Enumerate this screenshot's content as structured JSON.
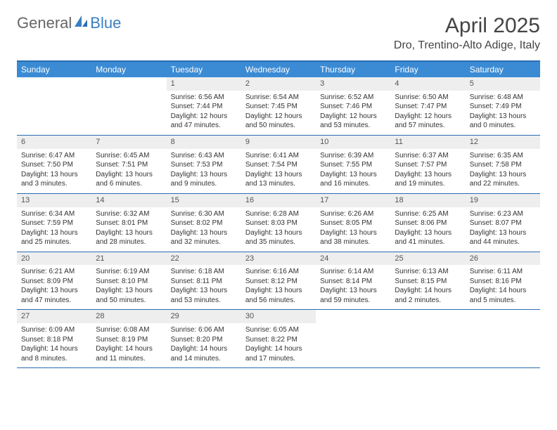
{
  "logo": {
    "text1": "General",
    "text2": "Blue"
  },
  "title": "April 2025",
  "location": "Dro, Trentino-Alto Adige, Italy",
  "colors": {
    "header_bar": "#3b8bd4",
    "border": "#2a6db3",
    "daynum_bg": "#eeeeee",
    "text": "#333333",
    "logo_blue": "#3b7fc4"
  },
  "weekdays": [
    "Sunday",
    "Monday",
    "Tuesday",
    "Wednesday",
    "Thursday",
    "Friday",
    "Saturday"
  ],
  "weeks": [
    [
      null,
      null,
      {
        "n": "1",
        "sr": "Sunrise: 6:56 AM",
        "ss": "Sunset: 7:44 PM",
        "d1": "Daylight: 12 hours",
        "d2": "and 47 minutes."
      },
      {
        "n": "2",
        "sr": "Sunrise: 6:54 AM",
        "ss": "Sunset: 7:45 PM",
        "d1": "Daylight: 12 hours",
        "d2": "and 50 minutes."
      },
      {
        "n": "3",
        "sr": "Sunrise: 6:52 AM",
        "ss": "Sunset: 7:46 PM",
        "d1": "Daylight: 12 hours",
        "d2": "and 53 minutes."
      },
      {
        "n": "4",
        "sr": "Sunrise: 6:50 AM",
        "ss": "Sunset: 7:47 PM",
        "d1": "Daylight: 12 hours",
        "d2": "and 57 minutes."
      },
      {
        "n": "5",
        "sr": "Sunrise: 6:48 AM",
        "ss": "Sunset: 7:49 PM",
        "d1": "Daylight: 13 hours",
        "d2": "and 0 minutes."
      }
    ],
    [
      {
        "n": "6",
        "sr": "Sunrise: 6:47 AM",
        "ss": "Sunset: 7:50 PM",
        "d1": "Daylight: 13 hours",
        "d2": "and 3 minutes."
      },
      {
        "n": "7",
        "sr": "Sunrise: 6:45 AM",
        "ss": "Sunset: 7:51 PM",
        "d1": "Daylight: 13 hours",
        "d2": "and 6 minutes."
      },
      {
        "n": "8",
        "sr": "Sunrise: 6:43 AM",
        "ss": "Sunset: 7:53 PM",
        "d1": "Daylight: 13 hours",
        "d2": "and 9 minutes."
      },
      {
        "n": "9",
        "sr": "Sunrise: 6:41 AM",
        "ss": "Sunset: 7:54 PM",
        "d1": "Daylight: 13 hours",
        "d2": "and 13 minutes."
      },
      {
        "n": "10",
        "sr": "Sunrise: 6:39 AM",
        "ss": "Sunset: 7:55 PM",
        "d1": "Daylight: 13 hours",
        "d2": "and 16 minutes."
      },
      {
        "n": "11",
        "sr": "Sunrise: 6:37 AM",
        "ss": "Sunset: 7:57 PM",
        "d1": "Daylight: 13 hours",
        "d2": "and 19 minutes."
      },
      {
        "n": "12",
        "sr": "Sunrise: 6:35 AM",
        "ss": "Sunset: 7:58 PM",
        "d1": "Daylight: 13 hours",
        "d2": "and 22 minutes."
      }
    ],
    [
      {
        "n": "13",
        "sr": "Sunrise: 6:34 AM",
        "ss": "Sunset: 7:59 PM",
        "d1": "Daylight: 13 hours",
        "d2": "and 25 minutes."
      },
      {
        "n": "14",
        "sr": "Sunrise: 6:32 AM",
        "ss": "Sunset: 8:01 PM",
        "d1": "Daylight: 13 hours",
        "d2": "and 28 minutes."
      },
      {
        "n": "15",
        "sr": "Sunrise: 6:30 AM",
        "ss": "Sunset: 8:02 PM",
        "d1": "Daylight: 13 hours",
        "d2": "and 32 minutes."
      },
      {
        "n": "16",
        "sr": "Sunrise: 6:28 AM",
        "ss": "Sunset: 8:03 PM",
        "d1": "Daylight: 13 hours",
        "d2": "and 35 minutes."
      },
      {
        "n": "17",
        "sr": "Sunrise: 6:26 AM",
        "ss": "Sunset: 8:05 PM",
        "d1": "Daylight: 13 hours",
        "d2": "and 38 minutes."
      },
      {
        "n": "18",
        "sr": "Sunrise: 6:25 AM",
        "ss": "Sunset: 8:06 PM",
        "d1": "Daylight: 13 hours",
        "d2": "and 41 minutes."
      },
      {
        "n": "19",
        "sr": "Sunrise: 6:23 AM",
        "ss": "Sunset: 8:07 PM",
        "d1": "Daylight: 13 hours",
        "d2": "and 44 minutes."
      }
    ],
    [
      {
        "n": "20",
        "sr": "Sunrise: 6:21 AM",
        "ss": "Sunset: 8:09 PM",
        "d1": "Daylight: 13 hours",
        "d2": "and 47 minutes."
      },
      {
        "n": "21",
        "sr": "Sunrise: 6:19 AM",
        "ss": "Sunset: 8:10 PM",
        "d1": "Daylight: 13 hours",
        "d2": "and 50 minutes."
      },
      {
        "n": "22",
        "sr": "Sunrise: 6:18 AM",
        "ss": "Sunset: 8:11 PM",
        "d1": "Daylight: 13 hours",
        "d2": "and 53 minutes."
      },
      {
        "n": "23",
        "sr": "Sunrise: 6:16 AM",
        "ss": "Sunset: 8:12 PM",
        "d1": "Daylight: 13 hours",
        "d2": "and 56 minutes."
      },
      {
        "n": "24",
        "sr": "Sunrise: 6:14 AM",
        "ss": "Sunset: 8:14 PM",
        "d1": "Daylight: 13 hours",
        "d2": "and 59 minutes."
      },
      {
        "n": "25",
        "sr": "Sunrise: 6:13 AM",
        "ss": "Sunset: 8:15 PM",
        "d1": "Daylight: 14 hours",
        "d2": "and 2 minutes."
      },
      {
        "n": "26",
        "sr": "Sunrise: 6:11 AM",
        "ss": "Sunset: 8:16 PM",
        "d1": "Daylight: 14 hours",
        "d2": "and 5 minutes."
      }
    ],
    [
      {
        "n": "27",
        "sr": "Sunrise: 6:09 AM",
        "ss": "Sunset: 8:18 PM",
        "d1": "Daylight: 14 hours",
        "d2": "and 8 minutes."
      },
      {
        "n": "28",
        "sr": "Sunrise: 6:08 AM",
        "ss": "Sunset: 8:19 PM",
        "d1": "Daylight: 14 hours",
        "d2": "and 11 minutes."
      },
      {
        "n": "29",
        "sr": "Sunrise: 6:06 AM",
        "ss": "Sunset: 8:20 PM",
        "d1": "Daylight: 14 hours",
        "d2": "and 14 minutes."
      },
      {
        "n": "30",
        "sr": "Sunrise: 6:05 AM",
        "ss": "Sunset: 8:22 PM",
        "d1": "Daylight: 14 hours",
        "d2": "and 17 minutes."
      },
      null,
      null,
      null
    ]
  ]
}
